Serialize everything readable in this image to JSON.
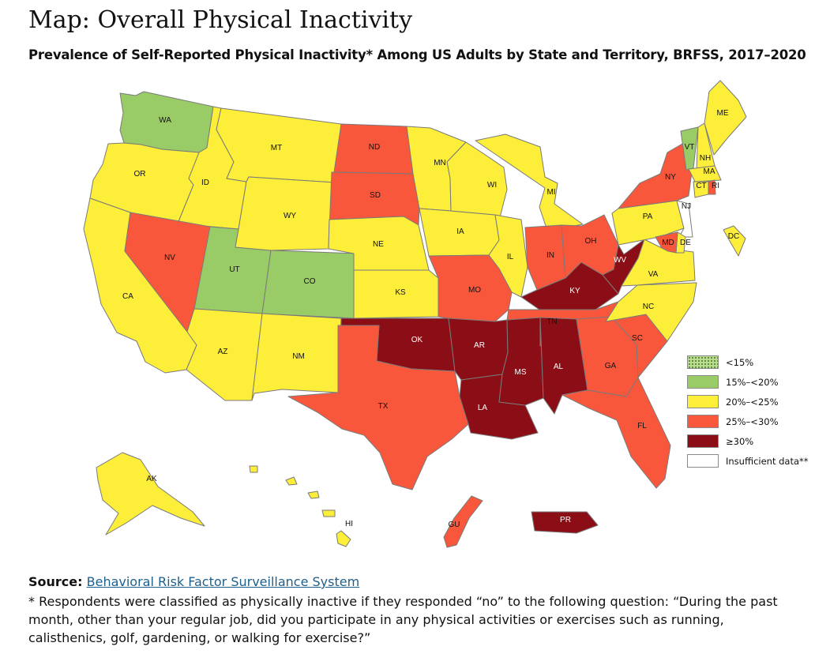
{
  "title": "Map: Overall Physical Inactivity",
  "subtitle": "Prevalence of Self-Reported Physical Inactivity* Among US Adults by State and Territory, BRFSS, 2017–2020",
  "colors": {
    "lt15": "#b9dc8e",
    "c15_20": "#99cc66",
    "c20_25": "#fdee3a",
    "c25_30": "#f9573b",
    "ge30": "#8b0d15",
    "insufficient": "#ffffff"
  },
  "legend": [
    {
      "key": "lt15",
      "label": "<15%"
    },
    {
      "key": "c15_20",
      "label": "15%–<20%"
    },
    {
      "key": "c20_25",
      "label": "20%–<25%"
    },
    {
      "key": "c25_30",
      "label": "25%–<30%"
    },
    {
      "key": "ge30",
      "label": "≥30%"
    },
    {
      "key": "insufficient",
      "label": "Insufficient data**"
    }
  ],
  "states": {
    "WA": "c15_20",
    "OR": "c20_25",
    "CA": "c20_25",
    "ID": "c20_25",
    "NV": "c25_30",
    "UT": "c15_20",
    "AZ": "c20_25",
    "MT": "c20_25",
    "WY": "c20_25",
    "CO": "c15_20",
    "NM": "c20_25",
    "ND": "c25_30",
    "SD": "c25_30",
    "NE": "c20_25",
    "KS": "c20_25",
    "OK": "ge30",
    "TX": "c25_30",
    "MN": "c20_25",
    "IA": "c20_25",
    "MO": "c25_30",
    "AR": "ge30",
    "LA": "ge30",
    "WI": "c20_25",
    "IL": "c20_25",
    "MS": "ge30",
    "MI": "c20_25",
    "IN": "c25_30",
    "KY": "ge30",
    "TN": "c25_30",
    "AL": "ge30",
    "OH": "c25_30",
    "WV": "ge30",
    "GA": "c25_30",
    "FL": "c25_30",
    "SC": "c25_30",
    "NC": "c20_25",
    "VA": "c20_25",
    "PA": "c20_25",
    "NY": "c25_30",
    "VT": "c15_20",
    "NH": "c20_25",
    "ME": "c20_25",
    "MA": "c20_25",
    "CT": "c20_25",
    "RI": "c25_30",
    "NJ": "insufficient",
    "DE": "c20_25",
    "MD": "c25_30",
    "DC": "c20_25",
    "AK": "c20_25",
    "HI": "c20_25",
    "PR": "ge30",
    "GU": "c25_30"
  },
  "source": {
    "label": "Source:",
    "link_text": "Behavioral Risk Factor Surveillance System"
  },
  "footnote": "* Respondents were classified as physically inactive if they responded “no” to the following question: “During the past month, other than your regular job, did you participate in any physical activities or exercises such as running, calisthenics, golf, gardening, or walking for exercise?”"
}
